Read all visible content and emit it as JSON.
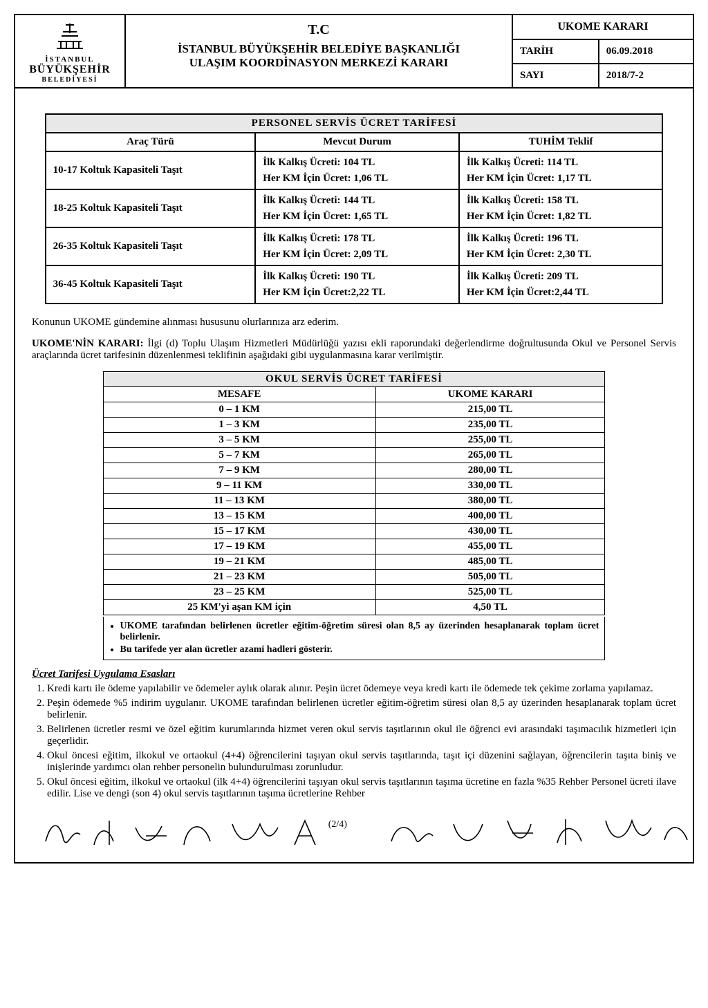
{
  "header": {
    "logo_line1": "İSTANBUL",
    "logo_line2": "BÜYÜKŞEHİR",
    "logo_line3": "BELEDİYESİ",
    "tc": "T.C",
    "center_line1": "İSTANBUL BÜYÜKŞEHİR BELEDİYE BAŞKANLIĞI",
    "center_line2": "ULAŞIM KOORDİNASYON MERKEZİ KARARI",
    "right_title": "UKOME KARARI",
    "tarih_label": "TARİH",
    "tarih_value": "06.09.2018",
    "sayi_label": "SAYI",
    "sayi_value": "2018/7-2"
  },
  "personel_table": {
    "title": "PERSONEL SERVİS ÜCRET TARİFESİ",
    "col_arac": "Araç Türü",
    "col_mevcut": "Mevcut Durum",
    "col_tuhim": "TUHİM Teklif",
    "rows": [
      {
        "arac": "10-17 Koltuk Kapasiteli Taşıt",
        "mevcut_l1": "İlk Kalkış Ücreti: 104 TL",
        "mevcut_l2": "Her KM İçin Ücret: 1,06 TL",
        "tuhim_l1": "İlk Kalkış Ücreti: 114 TL",
        "tuhim_l2": "Her KM İçin Ücret: 1,17 TL"
      },
      {
        "arac": "18-25 Koltuk Kapasiteli Taşıt",
        "mevcut_l1": "İlk Kalkış Ücreti: 144 TL",
        "mevcut_l2": "Her KM İçin Ücret: 1,65 TL",
        "tuhim_l1": "İlk Kalkış Ücreti: 158 TL",
        "tuhim_l2": "Her KM İçin Ücret: 1,82 TL"
      },
      {
        "arac": "26-35 Koltuk Kapasiteli Taşıt",
        "mevcut_l1": "İlk Kalkış Ücreti: 178 TL",
        "mevcut_l2": "Her KM İçin Ücret: 2,09 TL",
        "tuhim_l1": "İlk Kalkış Ücreti: 196 TL",
        "tuhim_l2": "Her KM İçin Ücret: 2,30 TL"
      },
      {
        "arac": "36-45 Koltuk Kapasiteli Taşıt",
        "mevcut_l1": "İlk Kalkış Ücreti: 190 TL",
        "mevcut_l2": "Her KM İçin Ücret:2,22 TL",
        "tuhim_l1": "İlk Kalkış Ücreti: 209 TL",
        "tuhim_l2": "Her KM İçin Ücret:2,44 TL"
      }
    ]
  },
  "paragraphs": {
    "p1": "Konunun UKOME gündemine alınması hususunu olurlarınıza arz ederim.",
    "karar_label": "UKOME'NİN KARARI: ",
    "karar_text": "İlgi (d) Toplu Ulaşım Hizmetleri Müdürlüğü yazısı ekli raporundaki değerlendirme doğrultusunda Okul ve Personel Servis araçlarında ücret tarifesinin düzenlenmesi teklifinin aşağıdaki gibi uygulanmasına karar verilmiştir."
  },
  "okul_table": {
    "title": "OKUL SERVİS ÜCRET TARİFESİ",
    "col_mesafe": "MESAFE",
    "col_karar": "UKOME KARARI",
    "rows": [
      {
        "mesafe": "0 – 1 KM",
        "ucret": "215,00 TL"
      },
      {
        "mesafe": "1 – 3 KM",
        "ucret": "235,00 TL"
      },
      {
        "mesafe": "3 – 5 KM",
        "ucret": "255,00 TL"
      },
      {
        "mesafe": "5 – 7 KM",
        "ucret": "265,00 TL"
      },
      {
        "mesafe": "7 – 9 KM",
        "ucret": "280,00 TL"
      },
      {
        "mesafe": "9 – 11 KM",
        "ucret": "330,00 TL"
      },
      {
        "mesafe": "11 – 13 KM",
        "ucret": "380,00 TL"
      },
      {
        "mesafe": "13 – 15 KM",
        "ucret": "400,00 TL"
      },
      {
        "mesafe": "15 – 17 KM",
        "ucret": "430,00 TL"
      },
      {
        "mesafe": "17 – 19 KM",
        "ucret": "455,00 TL"
      },
      {
        "mesafe": "19 – 21 KM",
        "ucret": "485,00 TL"
      },
      {
        "mesafe": "21 – 23 KM",
        "ucret": "505,00 TL"
      },
      {
        "mesafe": "23 – 25 KM",
        "ucret": "525,00 TL"
      },
      {
        "mesafe": "25 KM'yi aşan KM için",
        "ucret": "4,50 TL"
      }
    ]
  },
  "notes": {
    "n1": "UKOME tarafından belirlenen ücretler eğitim-öğretim süresi olan 8,5 ay üzerinden hesaplanarak toplam ücret belirlenir.",
    "n2": "Bu tarifede yer alan ücretler azami hadleri gösterir."
  },
  "esaslar_title": "Ücret Tarifesi Uygulama Esasları",
  "esaslar": [
    "Kredi kartı ile ödeme yapılabilir ve ödemeler aylık olarak alınır. Peşin ücret ödemeye veya kredi kartı ile ödemede tek çekime zorlama yapılamaz.",
    "Peşin ödemede %5 indirim uygulanır. UKOME tarafından belirlenen ücretler eğitim-öğretim süresi olan 8,5 ay üzerinden hesaplanarak toplam ücret belirlenir.",
    "Belirlenen ücretler resmi ve özel eğitim kurumlarında hizmet veren okul servis taşıtlarının okul ile öğrenci evi arasındaki taşımacılık hizmetleri için geçerlidir.",
    "Okul öncesi eğitim, ilkokul ve ortaokul (4+4) öğrencilerini taşıyan okul servis taşıtlarında, taşıt içi düzenini sağlayan, öğrencilerin taşıta biniş ve inişlerinde yardımcı olan rehber personelin bulundurulması zorunludur.",
    "Okul öncesi eğitim, ilkokul ve ortaokul (ilk 4+4) öğrencilerini taşıyan okul servis taşıtlarının taşıma ücretine en fazla %35 Rehber Personel ücreti ilave edilir. Lise ve dengi (son 4) okul servis taşıtlarının taşıma ücretlerine Rehber"
  ],
  "pagenum": "(2/4)"
}
